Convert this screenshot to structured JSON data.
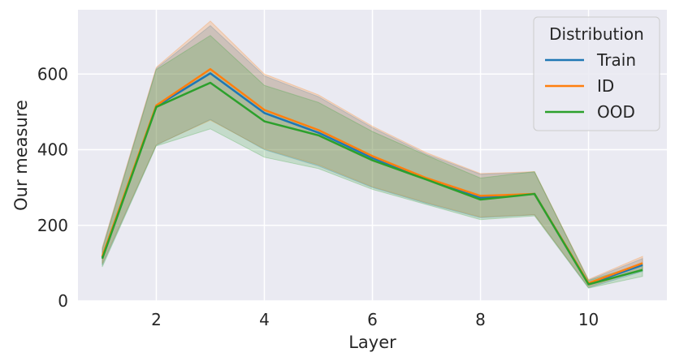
{
  "chart_data": {
    "type": "line",
    "title": "",
    "xlabel": "Layer",
    "ylabel": "Our measure",
    "xlim": [
      0.55,
      11.45
    ],
    "ylim": [
      0,
      770
    ],
    "x_ticks": [
      2,
      4,
      6,
      8,
      10
    ],
    "y_ticks": [
      0,
      200,
      400,
      600
    ],
    "grid": true,
    "legend": {
      "title": "Distribution",
      "placement": "top-right"
    },
    "x": [
      1,
      2,
      3,
      4,
      5,
      6,
      7,
      8,
      9,
      10,
      11
    ],
    "series": [
      {
        "name": "Train",
        "color": "#1f77b4",
        "values": [
          115,
          515,
          602,
          497,
          445,
          378,
          322,
          273,
          283,
          45,
          95
        ],
        "lower": [
          95,
          412,
          480,
          400,
          357,
          300,
          258,
          220,
          228,
          35,
          78
        ],
        "upper": [
          140,
          615,
          728,
          595,
          540,
          458,
          388,
          335,
          340,
          55,
          112
        ]
      },
      {
        "name": "ID",
        "color": "#ff7f0e",
        "values": [
          118,
          517,
          613,
          505,
          452,
          383,
          325,
          278,
          283,
          47,
          100
        ],
        "lower": [
          98,
          413,
          478,
          402,
          360,
          302,
          260,
          222,
          228,
          37,
          83
        ],
        "upper": [
          142,
          618,
          740,
          600,
          545,
          462,
          392,
          337,
          342,
          57,
          118
        ]
      },
      {
        "name": "OOD",
        "color": "#2ca02c",
        "values": [
          112,
          513,
          577,
          475,
          438,
          372,
          321,
          268,
          283,
          44,
          82
        ],
        "lower": [
          90,
          410,
          455,
          380,
          350,
          295,
          255,
          215,
          225,
          34,
          65
        ],
        "upper": [
          135,
          612,
          702,
          570,
          525,
          448,
          385,
          325,
          342,
          54,
          98
        ]
      }
    ]
  }
}
